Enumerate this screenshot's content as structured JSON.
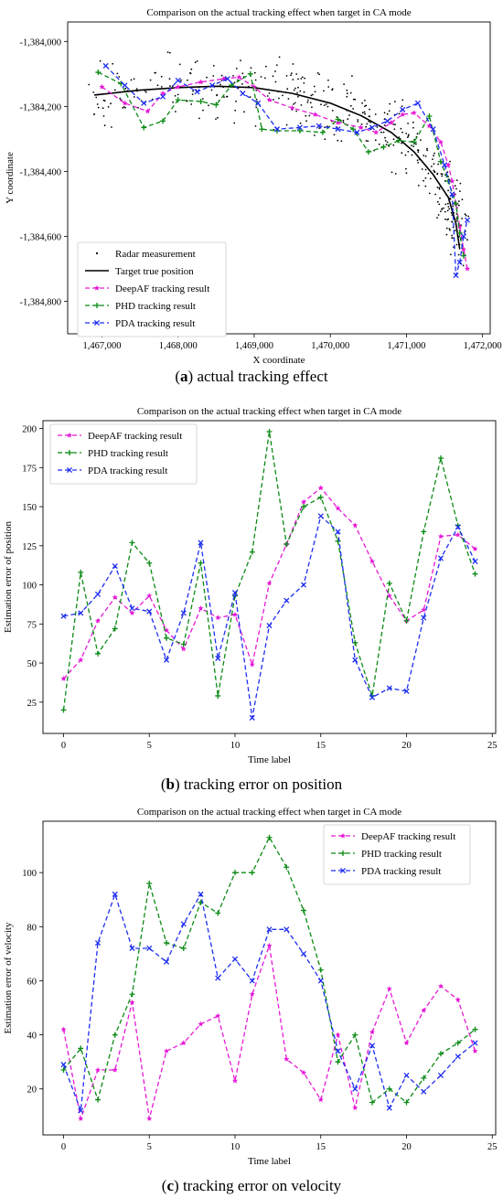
{
  "colors": {
    "deepaf": "#e619d6",
    "phd": "#0b8a14",
    "pda": "#1f2ef0",
    "truth": "#000000",
    "radar": "#000000"
  },
  "chart_data": [
    {
      "id": "a",
      "type": "scatter",
      "title": "Comparison on the actual tracking effect when target in CA mode",
      "xlabel": "X coordinate",
      "ylabel": "Y coordinate",
      "caption_letter": "a",
      "caption_text": " actual tracking effect",
      "xlim": [
        1466550,
        1472100
      ],
      "ylim": [
        -1384900,
        -1383940
      ],
      "xticks": [
        1467000,
        1468000,
        1469000,
        1470000,
        1471000,
        1472000
      ],
      "xtick_labels": [
        "1,467,000",
        "1,468,000",
        "1,469,000",
        "1,470,000",
        "1,471,000",
        "1,472,000"
      ],
      "yticks": [
        -1384000,
        -1384200,
        -1384400,
        -1384600,
        -1384800
      ],
      "ytick_labels": [
        "-1,384,000",
        "-1,384,200",
        "-1,384,400",
        "-1,384,600",
        "-1,384,800"
      ],
      "legend": [
        "Radar measurement",
        "Target true position",
        "DeepAF tracking result",
        "PHD tracking result",
        "PDA tracking result"
      ],
      "legend_position": "bottom-left",
      "truth": {
        "x": [
          1466900,
          1467500,
          1468000,
          1468500,
          1469000,
          1469500,
          1470000,
          1470400,
          1470800,
          1471100,
          1471350,
          1471550,
          1471650,
          1471700
        ],
        "y": [
          -1384165,
          -1384150,
          -1384142,
          -1384138,
          -1384142,
          -1384160,
          -1384190,
          -1384228,
          -1384280,
          -1384340,
          -1384410,
          -1384480,
          -1384560,
          -1384640
        ]
      },
      "series": [
        {
          "key": "deepaf",
          "x": [
            1467000,
            1467300,
            1467600,
            1467800,
            1468000,
            1468300,
            1468600,
            1468800,
            1469000,
            1469200,
            1469500,
            1469800,
            1470100,
            1470400,
            1470600,
            1470800,
            1470950,
            1471100,
            1471300,
            1471450,
            1471550,
            1471600,
            1471650,
            1471700,
            1471750,
            1471800
          ],
          "y": [
            -1384140,
            -1384190,
            -1384215,
            -1384160,
            -1384140,
            -1384125,
            -1384115,
            -1384110,
            -1384140,
            -1384180,
            -1384205,
            -1384225,
            -1384250,
            -1384265,
            -1384280,
            -1384250,
            -1384225,
            -1384220,
            -1384260,
            -1384310,
            -1384380,
            -1384430,
            -1384500,
            -1384570,
            -1384640,
            -1384700
          ]
        },
        {
          "key": "phd",
          "x": [
            1466950,
            1467250,
            1467550,
            1467800,
            1468000,
            1468300,
            1468500,
            1468700,
            1468950,
            1469100,
            1469300,
            1469600,
            1469900,
            1470100,
            1470300,
            1470500,
            1470700,
            1470900,
            1471100,
            1471300,
            1471450,
            1471550,
            1471650,
            1471700,
            1471750
          ],
          "y": [
            -1384095,
            -1384130,
            -1384265,
            -1384245,
            -1384180,
            -1384185,
            -1384195,
            -1384135,
            -1384100,
            -1384270,
            -1384275,
            -1384275,
            -1384280,
            -1384240,
            -1384270,
            -1384340,
            -1384325,
            -1384305,
            -1384310,
            -1384230,
            -1384370,
            -1384430,
            -1384500,
            -1384590,
            -1384660
          ]
        },
        {
          "key": "pda",
          "x": [
            1467050,
            1467300,
            1467550,
            1467800,
            1468000,
            1468250,
            1468450,
            1468650,
            1468850,
            1469050,
            1469300,
            1469600,
            1469850,
            1470100,
            1470350,
            1470550,
            1470750,
            1470950,
            1471150,
            1471350,
            1471500,
            1471600,
            1471650,
            1471700,
            1471750,
            1471800
          ],
          "y": [
            -1384075,
            -1384135,
            -1384190,
            -1384170,
            -1384120,
            -1384155,
            -1384135,
            -1384115,
            -1384160,
            -1384190,
            -1384270,
            -1384265,
            -1384260,
            -1384270,
            -1384280,
            -1384265,
            -1384245,
            -1384210,
            -1384190,
            -1384270,
            -1384380,
            -1384470,
            -1384720,
            -1384680,
            -1384600,
            -1384550
          ]
        }
      ],
      "radar_seed": 7
    },
    {
      "id": "b",
      "type": "line",
      "title": "Comparison on the actual tracking effect when target in CA mode",
      "xlabel": "Time label",
      "ylabel": "Estimation error of position",
      "caption_letter": "b",
      "caption_text": " tracking error on position",
      "xlim": [
        -1.2,
        25.2
      ],
      "ylim": [
        5,
        205
      ],
      "xticks": [
        0,
        5,
        10,
        15,
        20,
        25
      ],
      "yticks": [
        25,
        50,
        75,
        100,
        125,
        150,
        175,
        200
      ],
      "legend": [
        "DeepAF tracking result",
        "PHD tracking result",
        "PDA tracking result"
      ],
      "legend_position": "top-left",
      "x": [
        0,
        1,
        2,
        3,
        4,
        5,
        6,
        7,
        8,
        9,
        10,
        11,
        12,
        13,
        14,
        15,
        16,
        17,
        18,
        19,
        20,
        21,
        22,
        23,
        24
      ],
      "series": [
        {
          "key": "deepaf",
          "values": [
            40,
            52,
            77,
            92,
            82,
            93,
            71,
            59,
            85,
            79,
            81,
            49,
            101,
            126,
            153,
            162,
            149,
            138,
            115,
            93,
            77,
            84,
            131,
            132,
            123
          ]
        },
        {
          "key": "phd",
          "values": [
            20,
            108,
            56,
            72,
            127,
            114,
            66,
            62,
            114,
            29,
            93,
            121,
            198,
            126,
            150,
            156,
            128,
            63,
            29,
            101,
            77,
            134,
            181,
            138,
            107
          ]
        },
        {
          "key": "pda",
          "values": [
            80,
            82,
            94,
            112,
            85,
            83,
            52,
            82,
            127,
            53,
            95,
            15,
            74,
            90,
            100,
            144,
            134,
            52,
            28,
            34,
            32,
            79,
            117,
            137,
            115
          ]
        }
      ]
    },
    {
      "id": "c",
      "type": "line",
      "title": "Comparison on the actual tracking effect when target in CA mode",
      "xlabel": "Time label",
      "ylabel": "Estimation error of velocity",
      "caption_letter": "c",
      "caption_text": " tracking error on velocity",
      "xlim": [
        -1.2,
        25.2
      ],
      "ylim": [
        3,
        119
      ],
      "xticks": [
        0,
        5,
        10,
        15,
        20,
        25
      ],
      "yticks": [
        20,
        40,
        60,
        80,
        100
      ],
      "legend": [
        "DeepAF tracking result",
        "PHD tracking result",
        "PDA tracking result"
      ],
      "legend_position": "top-right",
      "x": [
        0,
        1,
        2,
        3,
        4,
        5,
        6,
        7,
        8,
        9,
        10,
        11,
        12,
        13,
        14,
        15,
        16,
        17,
        18,
        19,
        20,
        21,
        22,
        23,
        24
      ],
      "series": [
        {
          "key": "deepaf",
          "values": [
            42,
            9,
            27,
            27,
            52,
            9,
            34,
            37,
            44,
            47,
            23,
            55,
            73,
            31,
            26,
            16,
            40,
            13,
            41,
            57,
            37,
            49,
            58,
            53,
            34
          ]
        },
        {
          "key": "phd",
          "values": [
            27,
            35,
            16,
            40,
            55,
            96,
            74,
            72,
            89,
            85,
            100,
            100,
            113,
            102,
            86,
            64,
            30,
            40,
            15,
            20,
            15,
            24,
            33,
            37,
            42
          ]
        },
        {
          "key": "pda",
          "values": [
            29,
            12,
            74,
            92,
            72,
            72,
            67,
            81,
            92,
            61,
            68,
            60,
            79,
            79,
            70,
            60,
            34,
            20,
            36,
            13,
            25,
            19,
            25,
            32,
            37
          ]
        }
      ]
    }
  ]
}
